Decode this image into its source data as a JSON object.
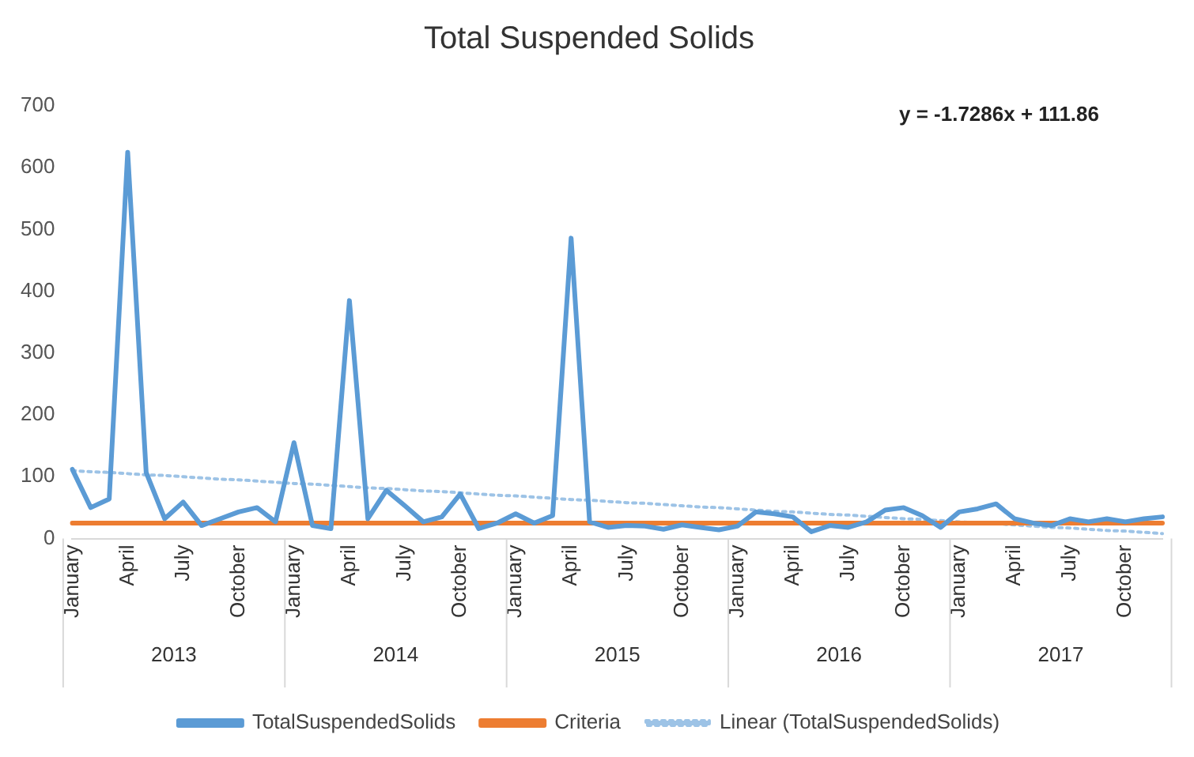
{
  "chart_data": {
    "type": "line",
    "title": "Total Suspended Solids",
    "categories": [
      "January",
      null,
      null,
      "April",
      null,
      null,
      "July",
      null,
      null,
      "October",
      null,
      null,
      "January",
      null,
      null,
      "April",
      null,
      null,
      "July",
      null,
      null,
      "October",
      null,
      null,
      "January",
      null,
      null,
      "April",
      null,
      null,
      "July",
      null,
      null,
      "October",
      null,
      null,
      "January",
      null,
      null,
      "April",
      null,
      null,
      "July",
      null,
      null,
      "October",
      null,
      null,
      "January",
      null,
      null,
      "April",
      null,
      null,
      "July",
      null,
      null,
      "October",
      null,
      null
    ],
    "series": [
      {
        "name": "TotalSuspendedSolids",
        "color": "#5b9bd5",
        "values": [
          112,
          50,
          64,
          625,
          107,
          32,
          59,
          21,
          32,
          43,
          50,
          27,
          155,
          21,
          16,
          385,
          32,
          78,
          53,
          27,
          35,
          72,
          16,
          25,
          40,
          25,
          37,
          486,
          27,
          18,
          21,
          20,
          15,
          22,
          18,
          14,
          20,
          43,
          40,
          35,
          11,
          21,
          18,
          27,
          46,
          50,
          37,
          18,
          43,
          48,
          56,
          32,
          25,
          21,
          32,
          27,
          32,
          27,
          32,
          35
        ]
      },
      {
        "name": "Criteria",
        "color": "#ed7d31",
        "values": [
          25,
          25,
          25,
          25,
          25,
          25,
          25,
          25,
          25,
          25,
          25,
          25,
          25,
          25,
          25,
          25,
          25,
          25,
          25,
          25,
          25,
          25,
          25,
          25,
          25,
          25,
          25,
          25,
          25,
          25,
          25,
          25,
          25,
          25,
          25,
          25,
          25,
          25,
          25,
          25,
          25,
          25,
          25,
          25,
          25,
          25,
          25,
          25,
          25,
          25,
          25,
          25,
          25,
          25,
          25,
          25,
          25,
          25,
          25,
          25
        ]
      },
      {
        "name": "Linear (TotalSuspendedSolids)",
        "color": "#9dc3e6",
        "line_style": "dotted",
        "values": [
          110,
          108,
          107,
          105,
          103,
          102,
          100,
          98,
          96,
          95,
          93,
          91,
          89,
          88,
          86,
          84,
          82,
          81,
          79,
          77,
          76,
          74,
          72,
          70,
          69,
          67,
          65,
          63,
          62,
          60,
          58,
          57,
          55,
          53,
          51,
          50,
          48,
          46,
          44,
          43,
          41,
          39,
          38,
          36,
          34,
          32,
          31,
          29,
          27,
          25,
          24,
          22,
          20,
          18,
          17,
          15,
          13,
          12,
          10,
          8
        ]
      }
    ],
    "ylim": [
      0,
      700
    ],
    "yticks": [
      0,
      100,
      200,
      300,
      400,
      500,
      600,
      700
    ],
    "grid": false,
    "legend": "bottom",
    "marker": "none",
    "annotations": [
      "y = -1.7286x + 111.86",
      "2013",
      "2014",
      "2015",
      "2016",
      "2017"
    ]
  }
}
